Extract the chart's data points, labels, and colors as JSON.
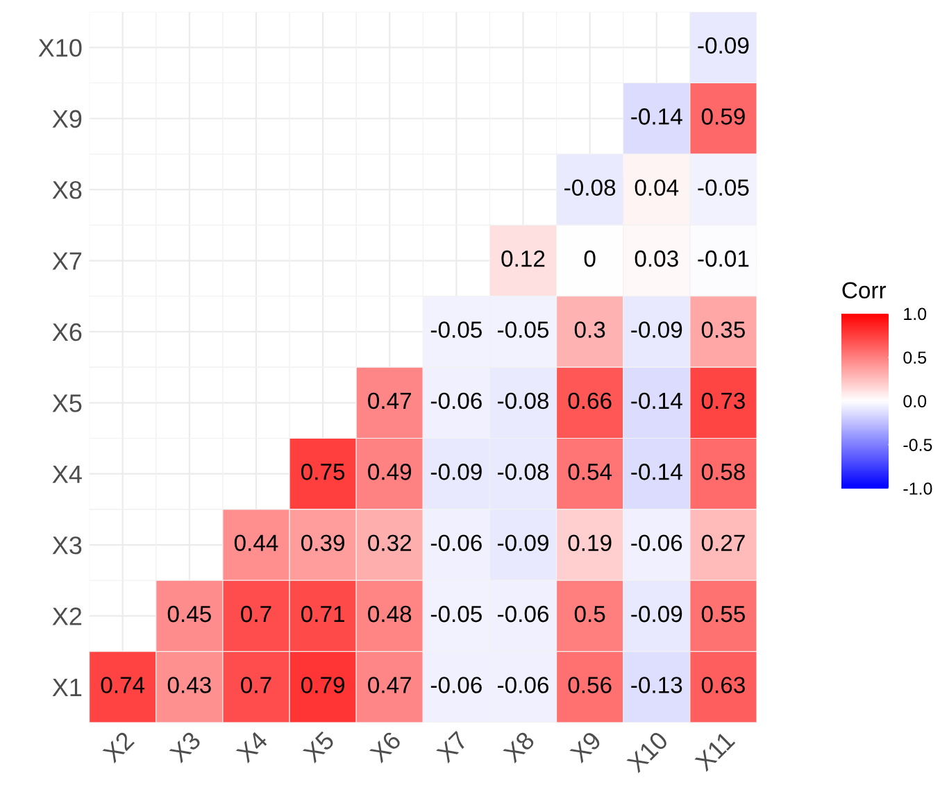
{
  "chart_data": {
    "type": "heatmap",
    "clabel": "Corr",
    "categories": [
      "X2",
      "X3",
      "X4",
      "X5",
      "X6",
      "X7",
      "X8",
      "X9",
      "X10",
      "X11"
    ],
    "y_categories": [
      "X10",
      "X9",
      "X8",
      "X7",
      "X6",
      "X5",
      "X4",
      "X3",
      "X2",
      "X1"
    ],
    "cells": [
      [
        null,
        null,
        null,
        null,
        null,
        null,
        null,
        null,
        null,
        -0.09
      ],
      [
        null,
        null,
        null,
        null,
        null,
        null,
        null,
        null,
        -0.14,
        0.59
      ],
      [
        null,
        null,
        null,
        null,
        null,
        null,
        null,
        -0.08,
        0.04,
        -0.05
      ],
      [
        null,
        null,
        null,
        null,
        null,
        null,
        0.12,
        0,
        0.03,
        -0.01
      ],
      [
        null,
        null,
        null,
        null,
        null,
        -0.05,
        -0.05,
        0.3,
        -0.09,
        0.35
      ],
      [
        null,
        null,
        null,
        null,
        0.47,
        -0.06,
        -0.08,
        0.66,
        -0.14,
        0.73
      ],
      [
        null,
        null,
        null,
        0.75,
        0.49,
        -0.09,
        -0.08,
        0.54,
        -0.14,
        0.58
      ],
      [
        null,
        null,
        0.44,
        0.39,
        0.32,
        -0.06,
        -0.09,
        0.19,
        -0.06,
        0.27
      ],
      [
        null,
        0.45,
        0.7,
        0.71,
        0.48,
        -0.05,
        -0.06,
        0.5,
        -0.09,
        0.55
      ],
      [
        0.74,
        0.43,
        0.7,
        0.79,
        0.47,
        -0.06,
        -0.06,
        0.56,
        -0.13,
        0.63
      ]
    ],
    "colors": [
      "#0000ff",
      "#ffffff",
      "#ff0000"
    ],
    "clim": [
      -1,
      1
    ],
    "cticks": [
      {
        "value": -1,
        "label": "-1.0"
      },
      {
        "value": -0.5,
        "label": "-0.5"
      },
      {
        "value": 0,
        "label": "0.0"
      },
      {
        "value": 0.5,
        "label": "0.5"
      },
      {
        "value": 1,
        "label": "1.0"
      }
    ],
    "data_labels": true,
    "grid": true
  }
}
